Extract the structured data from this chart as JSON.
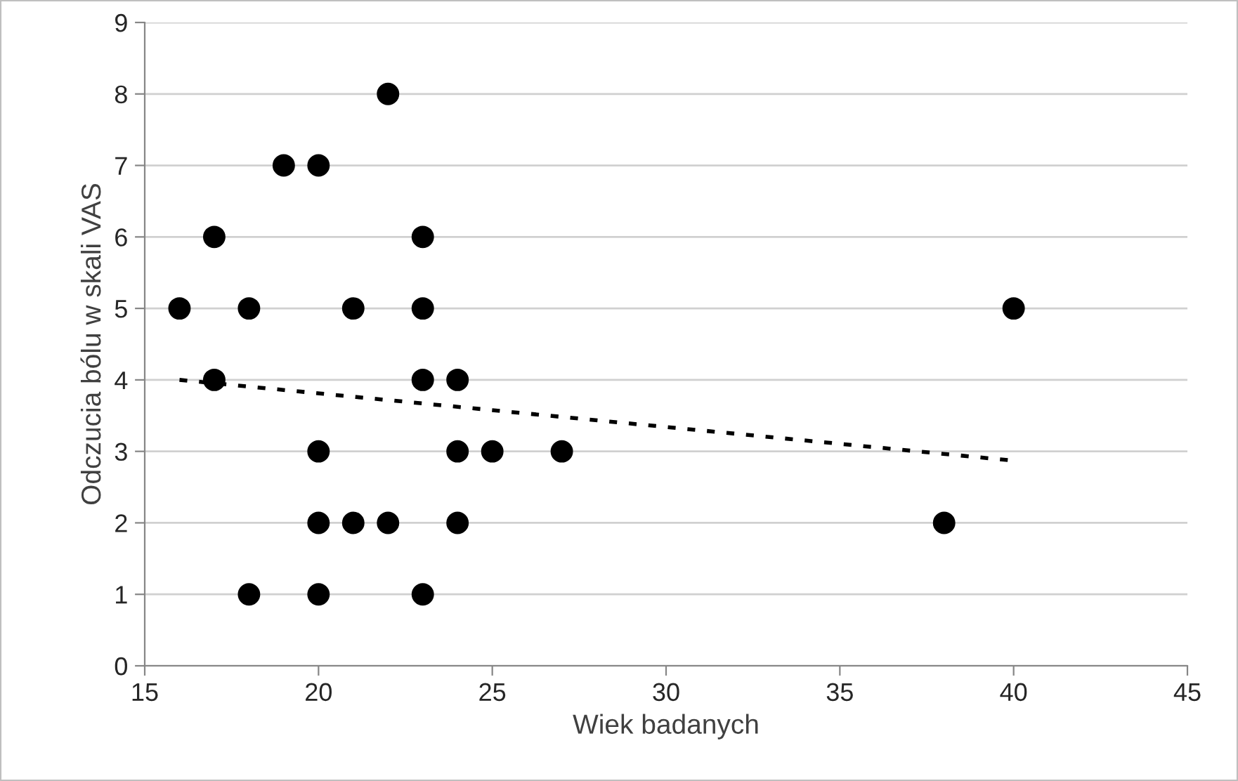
{
  "chart_data": {
    "type": "scatter",
    "xlabel": "Wiek badanych",
    "ylabel": "Odczucia bólu w skali VAS",
    "xlim": [
      15,
      45
    ],
    "xticks": [
      15,
      20,
      25,
      30,
      35,
      40,
      45
    ],
    "ylim": [
      0,
      9
    ],
    "yticks": [
      0,
      1,
      2,
      3,
      4,
      5,
      6,
      7,
      8,
      9
    ],
    "grid": "y",
    "legend": false,
    "series": [
      {
        "color": "#000000",
        "marker": "circle",
        "x": [
          22,
          19,
          20,
          17,
          23,
          16,
          18,
          21,
          23,
          40,
          17,
          23,
          24,
          20,
          24,
          25,
          27,
          20,
          21,
          22,
          24,
          38,
          18,
          20,
          23
        ],
        "values": [
          8,
          7,
          7,
          6,
          6,
          5,
          5,
          5,
          5,
          5,
          4,
          4,
          4,
          3,
          3,
          3,
          3,
          2,
          2,
          2,
          2,
          2,
          1,
          1,
          1
        ]
      },
      {
        "type": "line",
        "color": "#000000",
        "marker": "none",
        "line_style": "dotted",
        "x": [
          16,
          40
        ],
        "values": [
          4.0,
          2.87
        ]
      }
    ]
  }
}
